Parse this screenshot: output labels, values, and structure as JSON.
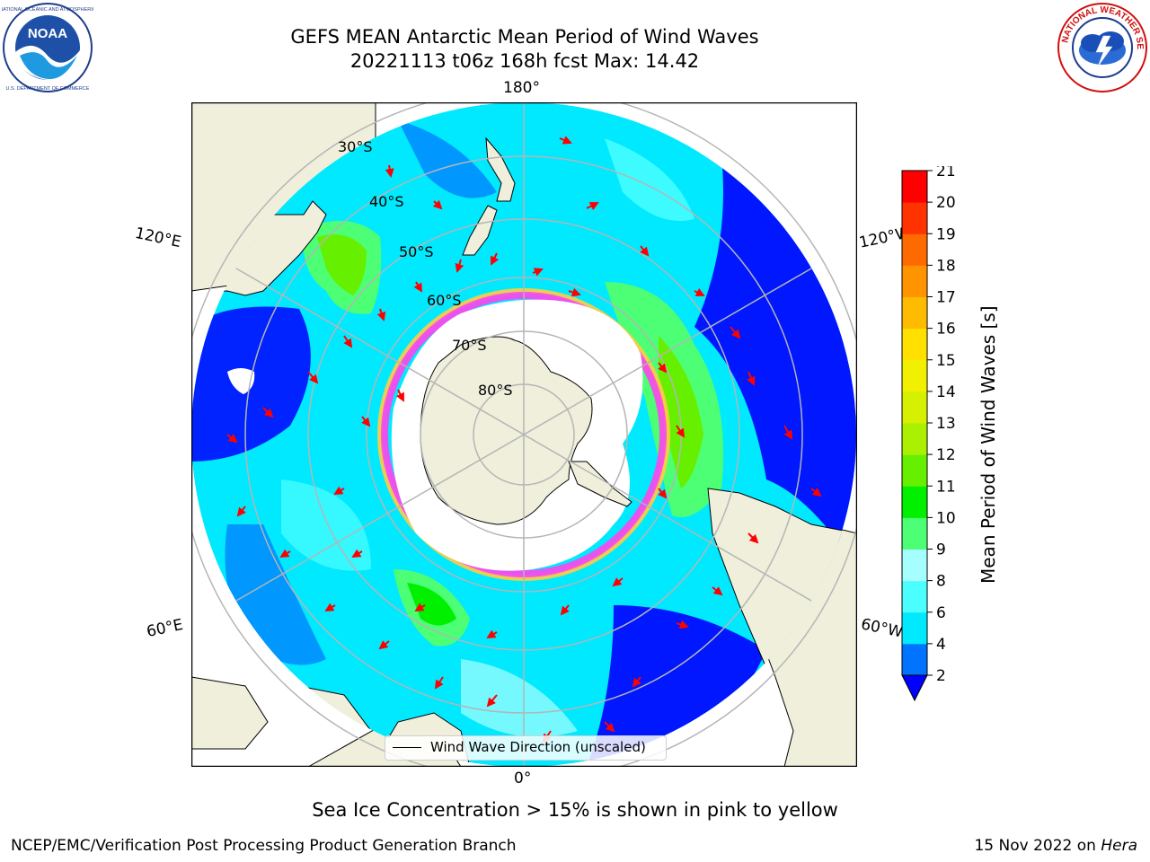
{
  "header": {
    "title_line1": "GEFS MEAN Antarctic Mean Period of Wind Waves",
    "title_line2": "20221113 t06z 168h fcst   Max: 14.42"
  },
  "logos": {
    "left": {
      "icon": "noaa-logo",
      "text": "NOAA",
      "ring_text": "NATIONAL OCEANIC AND ATMOSPHERIC ADMINISTRATION · U.S. DEPARTMENT OF COMMERCE"
    },
    "right": {
      "icon": "nws-logo",
      "ring_text": "NATIONAL WEATHER SERVICE"
    }
  },
  "map": {
    "projection": "south-polar-stereographic",
    "longitude_labels": {
      "top": "180°",
      "bottom": "0°",
      "left_upper": "120°E",
      "left_lower": "60°E",
      "right_upper": "120°W",
      "right_lower": "60°W"
    },
    "latitude_labels": [
      "30°S",
      "40°S",
      "50°S",
      "60°S",
      "70°S",
      "80°S"
    ],
    "legend_label": "Wind Wave Direction (unscaled)",
    "colors": {
      "land": "#efefdc",
      "ice": "#ffffff",
      "ice_edge": "#ff44ee",
      "arrow": "#ff0000",
      "grid": "#b5b5b5"
    }
  },
  "colorbar": {
    "label": "Mean Period of Wind Waves [s]",
    "ticks": [
      "2",
      "4",
      "6",
      "8",
      "9",
      "10",
      "11",
      "12",
      "13",
      "14",
      "15",
      "16",
      "17",
      "18",
      "19",
      "20",
      "21"
    ],
    "colors": [
      "#0000ff",
      "#0073ff",
      "#00e9ff",
      "#4cffff",
      "#a6ffff",
      "#4cff74",
      "#00f000",
      "#66f000",
      "#aaf000",
      "#d5f000",
      "#f0f000",
      "#ffe000",
      "#ffbb00",
      "#ff9400",
      "#ff6a00",
      "#ff3300",
      "#ff0000"
    ],
    "extend": "min"
  },
  "captions": {
    "sea_ice": "Sea Ice Concentration > 15% is shown in pink to yellow",
    "footer_left": "NCEP/EMC/Verification Post Processing Product Generation Branch",
    "footer_date": "15 Nov 2022 on",
    "footer_host": "Hera"
  }
}
